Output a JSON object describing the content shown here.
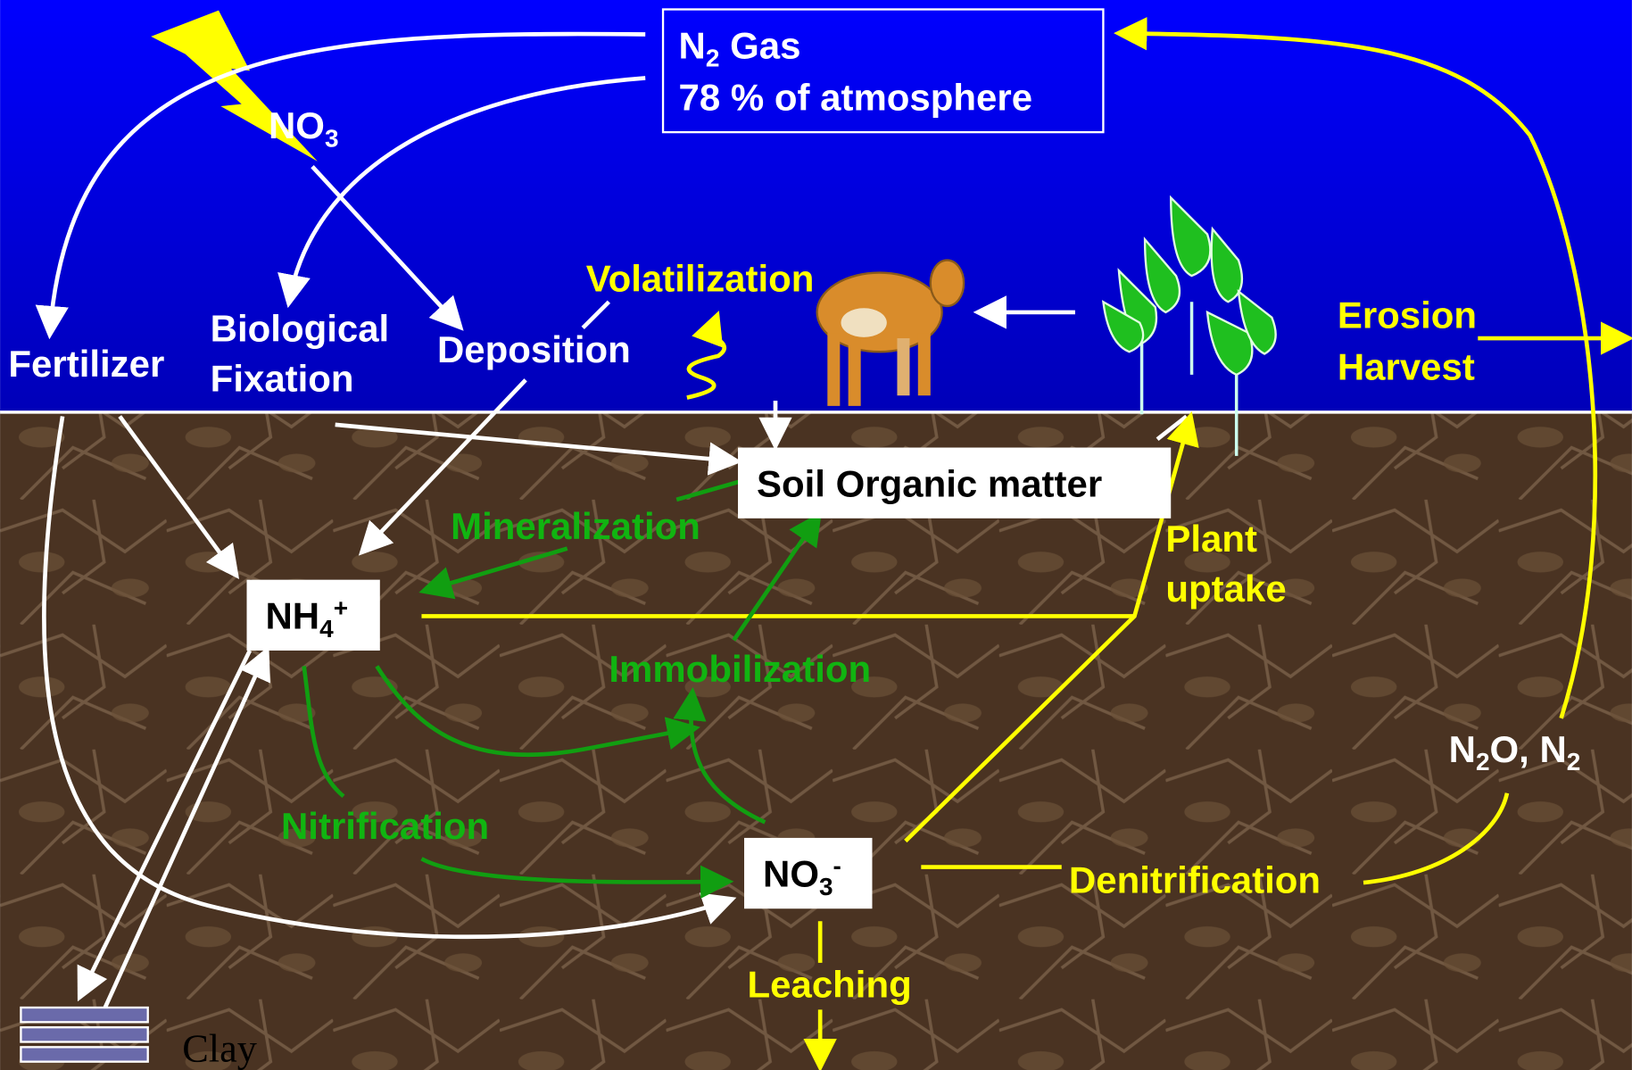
{
  "atmosphere": {
    "n2": {
      "symbol": "N",
      "subscript": "2",
      "label": "Gas"
    },
    "share": "78 % of atmosphere"
  },
  "lightning_product": {
    "symbol": "NO",
    "subscript": "3"
  },
  "fertilizer": "Fertilizer",
  "biological_fixation": [
    "Biological",
    "Fixation"
  ],
  "deposition": "Deposition",
  "volatilization": "Volatilization",
  "erosion_harvest": [
    "Erosion",
    "Harvest"
  ],
  "soil_organic_matter": "Soil Organic matter",
  "mineralization": "Mineralization",
  "plant_uptake": [
    "Plant",
    "uptake"
  ],
  "ammonium": {
    "symbol": "NH",
    "subscript": "4",
    "superscript": "+"
  },
  "immobilization": "Immobilization",
  "nitrification": "Nitrification",
  "nitrate": {
    "symbol": "NO",
    "subscript": "3",
    "superscript": "-"
  },
  "denitrification": "Denitrification",
  "gases": {
    "n": "N",
    "sub1": "2",
    "middle": "O, N",
    "sub2": "2"
  },
  "leaching": "Leaching",
  "clay": "Clay"
}
